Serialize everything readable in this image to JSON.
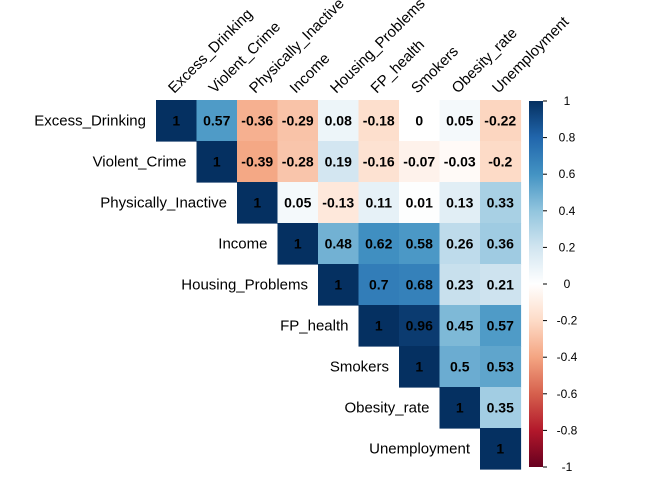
{
  "chart_data": {
    "type": "heatmap",
    "title": "",
    "variables": [
      "Excess_Drinking",
      "Violent_Crime",
      "Physically_Inactive",
      "Income",
      "Housing_Problems",
      "FP_health",
      "Smokers",
      "Obesity_rate",
      "Unemployment"
    ],
    "value_labels": [
      [
        "1",
        "0.57",
        "-0.36",
        "-0.29",
        "0.08",
        "-0.18",
        "0",
        "0.05",
        "-0.22"
      ],
      [
        "",
        "1",
        "-0.39",
        "-0.28",
        "0.19",
        "-0.16",
        "-0.07",
        "-0.03",
        "-0.2"
      ],
      [
        "",
        "",
        "1",
        "0.05",
        "-0.13",
        "0.11",
        "0.01",
        "0.13",
        "0.33"
      ],
      [
        "",
        "",
        "",
        "1",
        "0.48",
        "0.62",
        "0.58",
        "0.26",
        "0.36"
      ],
      [
        "",
        "",
        "",
        "",
        "1",
        "0.7",
        "0.68",
        "0.23",
        "0.21"
      ],
      [
        "",
        "",
        "",
        "",
        "",
        "1",
        "0.96",
        "0.45",
        "0.57"
      ],
      [
        "",
        "",
        "",
        "",
        "",
        "",
        "1",
        "0.5",
        "0.53"
      ],
      [
        "",
        "",
        "",
        "",
        "",
        "",
        "",
        "1",
        "0.35"
      ],
      [
        "",
        "",
        "",
        "",
        "",
        "",
        "",
        "",
        "1"
      ]
    ],
    "layout": "upper-triangle",
    "color_scale": {
      "min": -1,
      "max": 1,
      "low_color": "#67001f",
      "mid_color": "#ffffff",
      "high_color": "#053061",
      "ticks": [
        "1",
        "0.8",
        "0.6",
        "0.4",
        "0.2",
        "0",
        "-0.2",
        "-0.4",
        "-0.6",
        "-0.8",
        "-1"
      ]
    },
    "legend": "right"
  }
}
